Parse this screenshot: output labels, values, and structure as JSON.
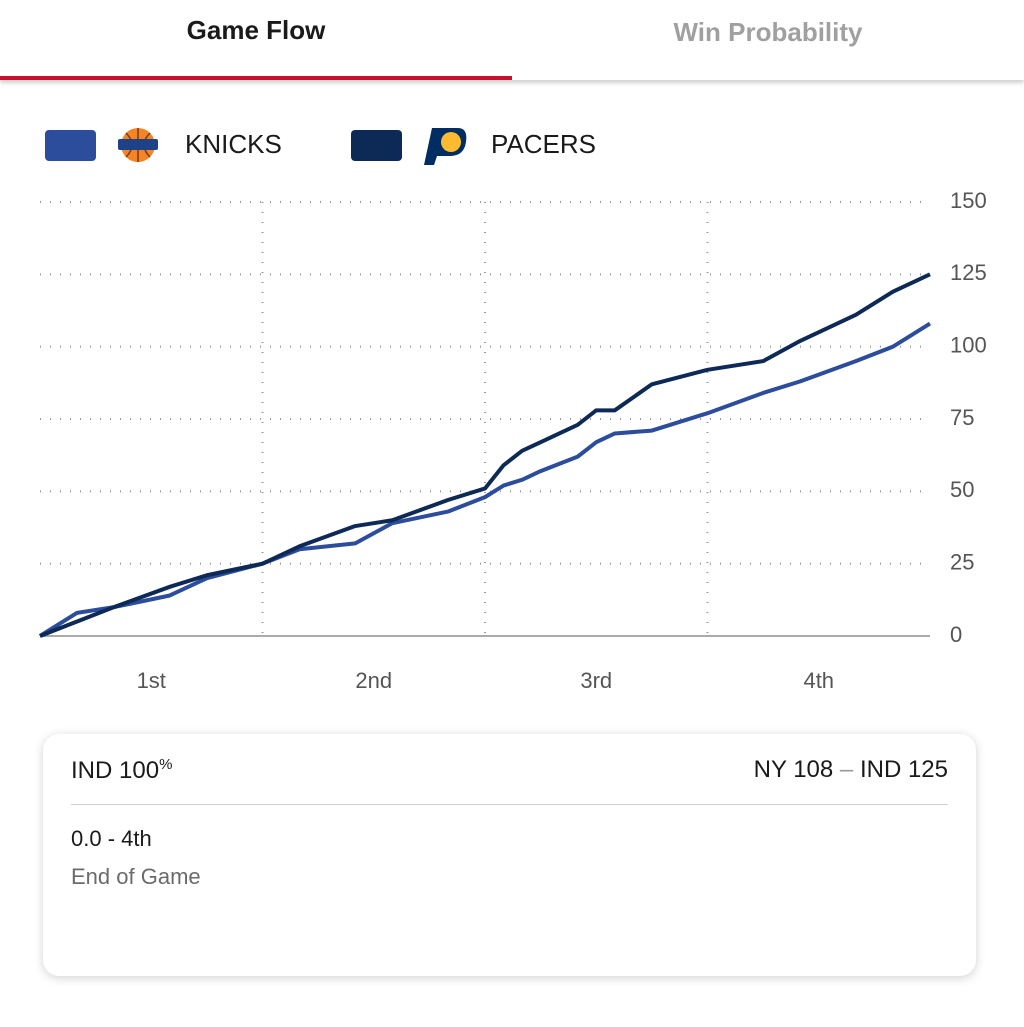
{
  "tabs": [
    "Game Flow",
    "Win Probability"
  ],
  "chart_data": {
    "type": "line",
    "x": [
      0,
      2,
      4,
      7,
      9,
      12,
      14,
      17,
      19,
      22,
      24,
      25,
      26,
      27,
      29,
      30,
      31,
      33,
      36,
      39,
      41,
      44,
      46,
      48
    ],
    "series": [
      {
        "name": "KNICKS",
        "color": "#2c4c9c",
        "values": [
          0,
          8,
          10,
          14,
          20,
          25,
          30,
          32,
          39,
          43,
          48,
          52,
          54,
          57,
          62,
          67,
          70,
          71,
          77,
          84,
          88,
          95,
          100,
          108
        ]
      },
      {
        "name": "PACERS",
        "color": "#0d2a57",
        "values": [
          0,
          5,
          10,
          17,
          21,
          25,
          31,
          38,
          40,
          47,
          51,
          59,
          64,
          67,
          73,
          78,
          78,
          87,
          92,
          95,
          102,
          111,
          119,
          125
        ]
      }
    ],
    "xlim": [
      0,
      48
    ],
    "xticks": [
      {
        "value": 6,
        "label": "1st"
      },
      {
        "value": 18,
        "label": "2nd"
      },
      {
        "value": 30,
        "label": "3rd"
      },
      {
        "value": 42,
        "label": "4th"
      }
    ],
    "ylim": [
      0,
      150
    ],
    "yticks": [
      0,
      25,
      50,
      75,
      100,
      125,
      150
    ],
    "grid": true
  },
  "card": {
    "team": "IND",
    "value": "100",
    "unit": "%",
    "score_home": "NY 108",
    "dash": "–",
    "score_away": "IND 125",
    "clock": "0.0 - 4th",
    "status": "End of Game"
  }
}
